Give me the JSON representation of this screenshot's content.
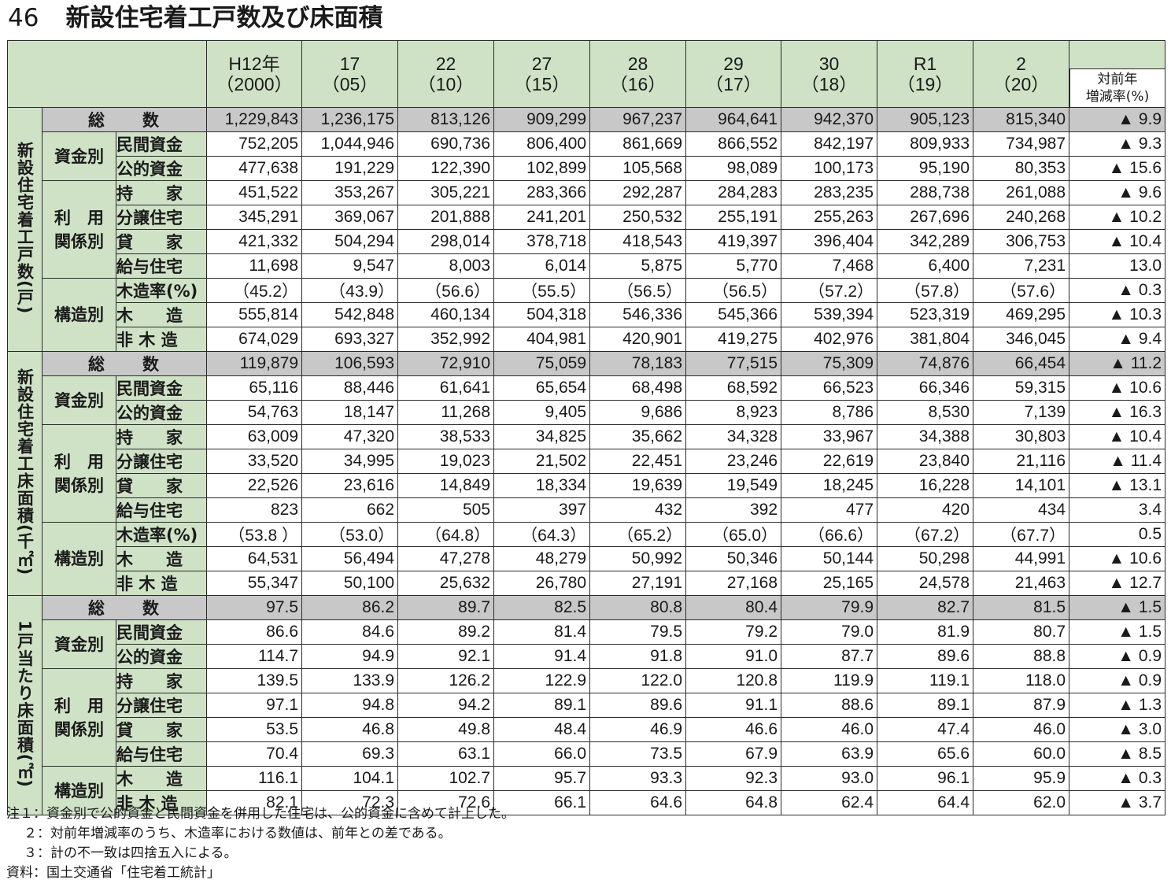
{
  "title": {
    "number": "46",
    "text": "新設住宅着工戸数及び床面積"
  },
  "header": {
    "years": [
      {
        "top": "H12年",
        "bottom": "（2000）"
      },
      {
        "top": "17",
        "bottom": "（05）"
      },
      {
        "top": "22",
        "bottom": "（10）"
      },
      {
        "top": "27",
        "bottom": "（15）"
      },
      {
        "top": "28",
        "bottom": "（16）"
      },
      {
        "top": "29",
        "bottom": "（17）"
      },
      {
        "top": "30",
        "bottom": "（18）"
      },
      {
        "top": "R1",
        "bottom": "（19）"
      },
      {
        "top": "2",
        "bottom": "（20）"
      }
    ],
    "rate_label_1": "対前年",
    "rate_label_2": "増減率(%)"
  },
  "sections": [
    {
      "label": "新設住宅着工戸数(戸)",
      "total": {
        "label": "総　　数",
        "values": [
          "1,229,843",
          "1,236,175",
          "813,126",
          "909,299",
          "967,237",
          "964,641",
          "942,370",
          "905,123",
          "815,340"
        ],
        "rate": "▲ 9.9"
      },
      "groups": [
        {
          "label": "資金別",
          "rows": [
            {
              "label": "民間資金",
              "values": [
                "752,205",
                "1,044,946",
                "690,736",
                "806,400",
                "861,669",
                "866,552",
                "842,197",
                "809,933",
                "734,987"
              ],
              "rate": "▲ 9.3"
            },
            {
              "label": "公的資金",
              "values": [
                "477,638",
                "191,229",
                "122,390",
                "102,899",
                "105,568",
                "98,089",
                "100,173",
                "95,190",
                "80,353"
              ],
              "rate": "▲ 15.6"
            }
          ]
        },
        {
          "label": "利　用\n関係別",
          "rows": [
            {
              "label": "持　　家",
              "values": [
                "451,522",
                "353,267",
                "305,221",
                "283,366",
                "292,287",
                "284,283",
                "283,235",
                "288,738",
                "261,088"
              ],
              "rate": "▲ 9.6"
            },
            {
              "label": "分譲住宅",
              "values": [
                "345,291",
                "369,067",
                "201,888",
                "241,201",
                "250,532",
                "255,191",
                "255,263",
                "267,696",
                "240,268"
              ],
              "rate": "▲ 10.2"
            },
            {
              "label": "貸　　家",
              "values": [
                "421,332",
                "504,294",
                "298,014",
                "378,718",
                "418,543",
                "419,397",
                "396,404",
                "342,289",
                "306,753"
              ],
              "rate": "▲ 10.4"
            },
            {
              "label": "給与住宅",
              "values": [
                "11,698",
                "9,547",
                "8,003",
                "6,014",
                "5,875",
                "5,770",
                "7,468",
                "6,400",
                "7,231"
              ],
              "rate": "13.0"
            }
          ]
        },
        {
          "label": "構造別",
          "rows": [
            {
              "label": "木造率(%)",
              "values": [
                "（45.2）",
                "（43.9）",
                "（56.6）",
                "（55.5）",
                "（56.5）",
                "（56.5）",
                "（57.2）",
                "（57.8）",
                "（57.6）"
              ],
              "rate": "▲ 0.3"
            },
            {
              "label": "木　　造",
              "values": [
                "555,814",
                "542,848",
                "460,134",
                "504,318",
                "546,336",
                "545,366",
                "539,394",
                "523,319",
                "469,295"
              ],
              "rate": "▲ 10.3"
            },
            {
              "label": "非 木 造",
              "values": [
                "674,029",
                "693,327",
                "352,992",
                "404,981",
                "420,901",
                "419,275",
                "402,976",
                "381,804",
                "346,045"
              ],
              "rate": "▲ 9.4"
            }
          ]
        }
      ]
    },
    {
      "label": "新設住宅着工床面積(千㎡)",
      "total": {
        "label": "総　　数",
        "values": [
          "119,879",
          "106,593",
          "72,910",
          "75,059",
          "78,183",
          "77,515",
          "75,309",
          "74,876",
          "66,454"
        ],
        "rate": "▲ 11.2"
      },
      "groups": [
        {
          "label": "資金別",
          "rows": [
            {
              "label": "民間資金",
              "values": [
                "65,116",
                "88,446",
                "61,641",
                "65,654",
                "68,498",
                "68,592",
                "66,523",
                "66,346",
                "59,315"
              ],
              "rate": "▲ 10.6"
            },
            {
              "label": "公的資金",
              "values": [
                "54,763",
                "18,147",
                "11,268",
                "9,405",
                "9,686",
                "8,923",
                "8,786",
                "8,530",
                "7,139"
              ],
              "rate": "▲ 16.3"
            }
          ]
        },
        {
          "label": "利　用\n関係別",
          "rows": [
            {
              "label": "持　　家",
              "values": [
                "63,009",
                "47,320",
                "38,533",
                "34,825",
                "35,662",
                "34,328",
                "33,967",
                "34,388",
                "30,803"
              ],
              "rate": "▲ 10.4"
            },
            {
              "label": "分譲住宅",
              "values": [
                "33,520",
                "34,995",
                "19,023",
                "21,502",
                "22,451",
                "23,246",
                "22,619",
                "23,840",
                "21,116"
              ],
              "rate": "▲ 11.4"
            },
            {
              "label": "貸　　家",
              "values": [
                "22,526",
                "23,616",
                "14,849",
                "18,334",
                "19,639",
                "19,549",
                "18,245",
                "16,228",
                "14,101"
              ],
              "rate": "▲ 13.1"
            },
            {
              "label": "給与住宅",
              "values": [
                "823",
                "662",
                "505",
                "397",
                "432",
                "392",
                "477",
                "420",
                "434"
              ],
              "rate": "3.4"
            }
          ]
        },
        {
          "label": "構造別",
          "rows": [
            {
              "label": "木造率(%)",
              "values": [
                "（53.8 ）",
                "（53.0）",
                "（64.8）",
                "（64.3）",
                "（65.2）",
                "（65.0）",
                "（66.6）",
                "（67.2）",
                "（67.7）"
              ],
              "rate": "0.5"
            },
            {
              "label": "木　　造",
              "values": [
                "64,531",
                "56,494",
                "47,278",
                "48,279",
                "50,992",
                "50,346",
                "50,144",
                "50,298",
                "44,991"
              ],
              "rate": "▲ 10.6"
            },
            {
              "label": "非 木 造",
              "values": [
                "55,347",
                "50,100",
                "25,632",
                "26,780",
                "27,191",
                "27,168",
                "25,165",
                "24,578",
                "21,463"
              ],
              "rate": "▲ 12.7"
            }
          ]
        }
      ]
    },
    {
      "label": "1戸当たり床面積(㎡)",
      "total": {
        "label": "総　　数",
        "values": [
          "97.5",
          "86.2",
          "89.7",
          "82.5",
          "80.8",
          "80.4",
          "79.9",
          "82.7",
          "81.5"
        ],
        "rate": "▲ 1.5"
      },
      "groups": [
        {
          "label": "資金別",
          "rows": [
            {
              "label": "民間資金",
              "values": [
                "86.6",
                "84.6",
                "89.2",
                "81.4",
                "79.5",
                "79.2",
                "79.0",
                "81.9",
                "80.7"
              ],
              "rate": "▲ 1.5"
            },
            {
              "label": "公的資金",
              "values": [
                "114.7",
                "94.9",
                "92.1",
                "91.4",
                "91.8",
                "91.0",
                "87.7",
                "89.6",
                "88.8"
              ],
              "rate": "▲ 0.9"
            }
          ]
        },
        {
          "label": "利　用\n関係別",
          "rows": [
            {
              "label": "持　　家",
              "values": [
                "139.5",
                "133.9",
                "126.2",
                "122.9",
                "122.0",
                "120.8",
                "119.9",
                "119.1",
                "118.0"
              ],
              "rate": "▲ 0.9"
            },
            {
              "label": "分譲住宅",
              "values": [
                "97.1",
                "94.8",
                "94.2",
                "89.1",
                "89.6",
                "91.1",
                "88.6",
                "89.1",
                "87.9"
              ],
              "rate": "▲ 1.3"
            },
            {
              "label": "貸　　家",
              "values": [
                "53.5",
                "46.8",
                "49.8",
                "48.4",
                "46.9",
                "46.6",
                "46.0",
                "47.4",
                "46.0"
              ],
              "rate": "▲ 3.0"
            },
            {
              "label": "給与住宅",
              "values": [
                "70.4",
                "69.3",
                "63.1",
                "66.0",
                "73.5",
                "67.9",
                "63.9",
                "65.6",
                "60.0"
              ],
              "rate": "▲ 8.5"
            }
          ]
        },
        {
          "label": "構造別",
          "rows": [
            {
              "label": "木　　造",
              "values": [
                "116.1",
                "104.1",
                "102.7",
                "95.7",
                "93.3",
                "92.3",
                "93.0",
                "96.1",
                "95.9"
              ],
              "rate": "▲ 0.3"
            },
            {
              "label": "非 木 造",
              "values": [
                "82.1",
                "72.3",
                "72.6",
                "66.1",
                "64.6",
                "64.8",
                "62.4",
                "64.4",
                "62.0"
              ],
              "rate": "▲ 3.7"
            }
          ]
        }
      ]
    }
  ],
  "notes": [
    "注１：資金別で公的資金と民間資金を併用した住宅は、公的資金に含めて計上した。",
    "２：対前年増減率のうち、木造率における数値は、前年との差である。",
    "３：計の不一致は四捨五入による。",
    "資料：国土交通省「住宅着工統計」"
  ]
}
